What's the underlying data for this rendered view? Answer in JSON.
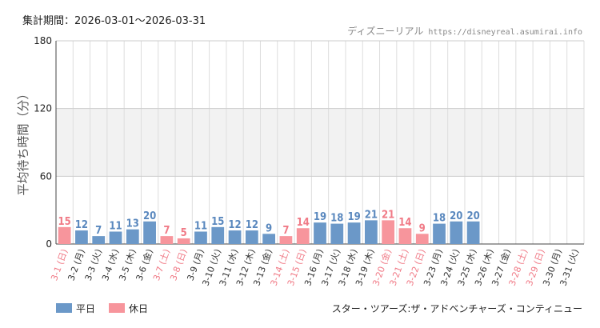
{
  "header": {
    "period_label": "集計期間",
    "period_sep": "：",
    "period_value": "2026-03-01～2026-03-31",
    "site_name": "ディズニーリアル",
    "site_url": "https://disneyreal.asumirai.info"
  },
  "footer": {
    "attraction": "スター・ツアーズ:ザ・アドベンチャーズ・コンティニュー"
  },
  "colors": {
    "weekday": "#6b98c8",
    "holiday": "#f7959c",
    "weekday_label": "#5a88be",
    "holiday_label": "#f07a86",
    "band": "#f2f2f2",
    "grid": "#dddddd"
  },
  "chart_data": {
    "type": "bar",
    "ylabel": "平均待ち時間（分）",
    "ylim": [
      0,
      180
    ],
    "yticks": [
      0,
      60,
      120,
      180
    ],
    "shaded_bands": [
      [
        60,
        120
      ]
    ],
    "grid": true,
    "legend_position": "bottom-left",
    "legend": [
      {
        "name": "平日",
        "key": "weekday"
      },
      {
        "name": "休日",
        "key": "holiday"
      }
    ],
    "categories": [
      "3-1 (日)",
      "3-2 (月)",
      "3-3 (火)",
      "3-4 (水)",
      "3-5 (木)",
      "3-6 (金)",
      "3-7 (土)",
      "3-8 (日)",
      "3-9 (月)",
      "3-10 (火)",
      "3-11 (水)",
      "3-12 (木)",
      "3-13 (金)",
      "3-14 (土)",
      "3-15 (日)",
      "3-16 (月)",
      "3-17 (火)",
      "3-18 (水)",
      "3-19 (木)",
      "3-20 (金)",
      "3-21 (土)",
      "3-22 (日)",
      "3-23 (月)",
      "3-24 (火)",
      "3-25 (水)",
      "3-26 (木)",
      "3-27 (金)",
      "3-28 (土)",
      "3-29 (日)",
      "3-30 (月)",
      "3-31 (火)"
    ],
    "day_type": [
      "holiday",
      "weekday",
      "weekday",
      "weekday",
      "weekday",
      "weekday",
      "holiday",
      "holiday",
      "weekday",
      "weekday",
      "weekday",
      "weekday",
      "weekday",
      "holiday",
      "holiday",
      "weekday",
      "weekday",
      "weekday",
      "weekday",
      "holiday",
      "holiday",
      "holiday",
      "weekday",
      "weekday",
      "weekday",
      "weekday",
      "weekday",
      "holiday",
      "holiday",
      "weekday",
      "weekday"
    ],
    "values": [
      15,
      12,
      7,
      11,
      13,
      20,
      7,
      5,
      11,
      15,
      12,
      12,
      9,
      7,
      14,
      19,
      18,
      19,
      21,
      21,
      14,
      9,
      18,
      20,
      20,
      null,
      null,
      null,
      null,
      null,
      null
    ]
  }
}
